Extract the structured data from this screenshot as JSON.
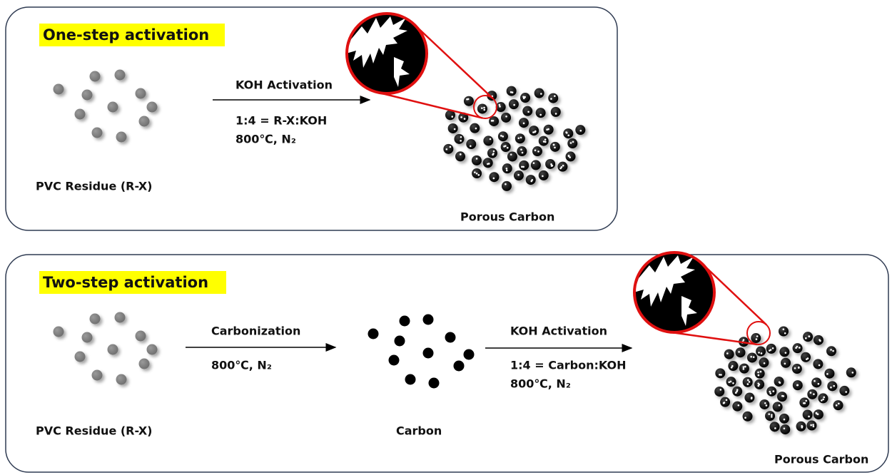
{
  "panels": [
    {
      "title": "One-step activation",
      "start": "PVC Residue (R-X)",
      "arrows": [
        {
          "label": "KOH Activation",
          "conditions": [
            "1:4 = R-X:KOH",
            "800℃, N₂"
          ]
        }
      ],
      "product": "Porous Carbon"
    },
    {
      "title": "Two-step activation",
      "start": "PVC Residue (R-X)",
      "arrows": [
        {
          "label": "Carbonization",
          "conditions": [
            "800℃, N₂"
          ]
        },
        {
          "label": "KOH Activation",
          "conditions": [
            "1:4 = Carbon:KOH",
            "800℃, N₂"
          ]
        }
      ],
      "intermediate": "Carbon",
      "product": "Porous Carbon"
    }
  ]
}
